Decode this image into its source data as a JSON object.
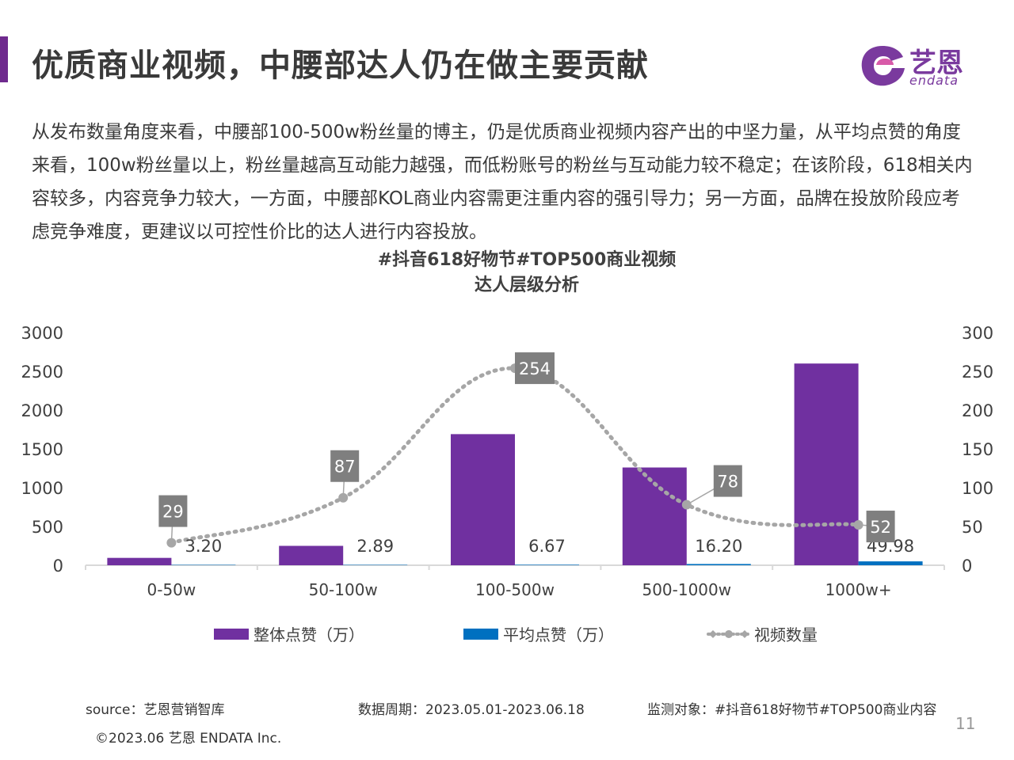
{
  "header": {
    "title": "优质商业视频，中腰部达人仍在做主要贡献"
  },
  "logo": {
    "cn": "艺恩",
    "en": "endata"
  },
  "description": "从发布数量角度来看，中腰部100-500w粉丝量的博主，仍是优质商业视频内容产出的中坚力量，从平均点赞的角度来看，100w粉丝量以上，粉丝量越高互动能力越强，而低粉账号的粉丝与互动能力较不稳定；在该阶段，618相关内容较多，内容竞争力较大，一方面，中腰部KOL商业内容需更注重内容的强引导力；另一方面，品牌在投放阶段应考虑竞争难度，更建议以可控性价比的达人进行内容投放。",
  "chart_data": {
    "type": "bar",
    "title_line1": "#抖音618好物节#TOP500商业视频",
    "title_line2": "达人层级分析",
    "categories": [
      "0-50w",
      "50-100w",
      "100-500w",
      "500-1000w",
      "1000w+"
    ],
    "series": [
      {
        "name": "整体点赞（万）",
        "type": "bar",
        "axis": "left",
        "color": "#7030a0",
        "values": [
          95,
          250,
          1690,
          1260,
          2600
        ]
      },
      {
        "name": "平均点赞（万）",
        "type": "bar",
        "axis": "left",
        "color": "#0070c0",
        "values": [
          3.2,
          2.89,
          6.67,
          16.2,
          49.98
        ],
        "labels": [
          "3.20",
          "2.89",
          "6.67",
          "16.20",
          "49.98"
        ]
      },
      {
        "name": "视频数量",
        "type": "line",
        "axis": "right",
        "color": "#a6a6a6",
        "style": "dotted-smooth",
        "values": [
          29,
          87,
          254,
          78,
          52
        ],
        "labels": [
          "29",
          "87",
          "254",
          "78",
          "52"
        ]
      }
    ],
    "left_axis": {
      "ylim": [
        0,
        3000
      ],
      "ticks": [
        "0",
        "500",
        "1000",
        "1500",
        "2000",
        "2500",
        "3000"
      ]
    },
    "right_axis": {
      "ylim": [
        0,
        300
      ],
      "ticks": [
        "0",
        "50",
        "100",
        "150",
        "200",
        "250",
        "300"
      ]
    },
    "grid": false,
    "legend_position": "bottom"
  },
  "footer": {
    "source": "source：艺恩营销智库",
    "period": "数据周期：2023.05.01-2023.06.18",
    "target": "监测对象：#抖音618好物节#TOP500商业内容",
    "copyright": "©2023.06 艺恩 ENDATA Inc.",
    "page": "11"
  }
}
